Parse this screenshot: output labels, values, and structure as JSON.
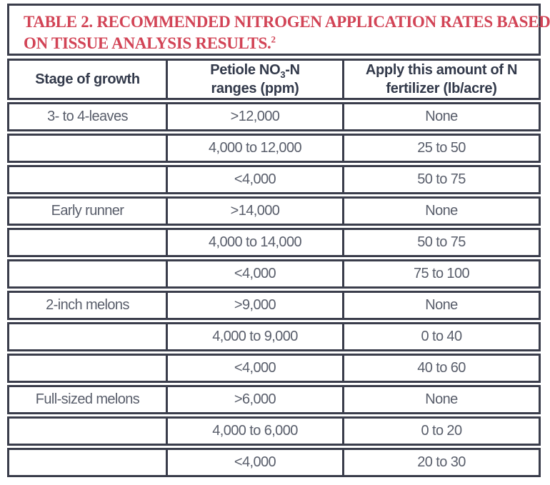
{
  "colors": {
    "title_red": "#d24456",
    "border_dark": "#3a3d4b",
    "header_text": "#333a4b",
    "cell_text": "#595e6b",
    "background": "#ffffff"
  },
  "title": {
    "line1": "TABLE 2. RECOMMENDED NITROGEN APPLICATION RATES BASED",
    "line2": "ON TISSUE ANALYSIS RESULTS.",
    "footnote_ref": "2"
  },
  "table": {
    "headers": {
      "stage": "Stage of growth",
      "petiole_prefix": "Petiole NO",
      "petiole_sub": "3",
      "petiole_suffix": "-N",
      "petiole_line2": "ranges (ppm)",
      "apply_line1": "Apply this amount of N",
      "apply_line2": "fertilizer (lb/acre)"
    },
    "rows": [
      {
        "stage": "3- to 4-leaves",
        "range": ">12,000",
        "rate": "None"
      },
      {
        "stage": "",
        "range": "4,000 to 12,000",
        "rate": "25 to 50"
      },
      {
        "stage": "",
        "range": "<4,000",
        "rate": "50 to 75"
      },
      {
        "stage": "Early runner",
        "range": ">14,000",
        "rate": "None"
      },
      {
        "stage": "",
        "range": "4,000 to 14,000",
        "rate": "50 to 75"
      },
      {
        "stage": "",
        "range": "<4,000",
        "rate": "75 to 100"
      },
      {
        "stage": "2-inch melons",
        "range": ">9,000",
        "rate": "None"
      },
      {
        "stage": "",
        "range": "4,000 to 9,000",
        "rate": "0 to 40"
      },
      {
        "stage": "",
        "range": "<4,000",
        "rate": "40 to 60"
      },
      {
        "stage": "Full-sized melons",
        "range": ">6,000",
        "rate": "None"
      },
      {
        "stage": "",
        "range": "4,000 to 6,000",
        "rate": "0 to 20"
      },
      {
        "stage": "",
        "range": "<4,000",
        "rate": "20 to 30"
      }
    ]
  }
}
